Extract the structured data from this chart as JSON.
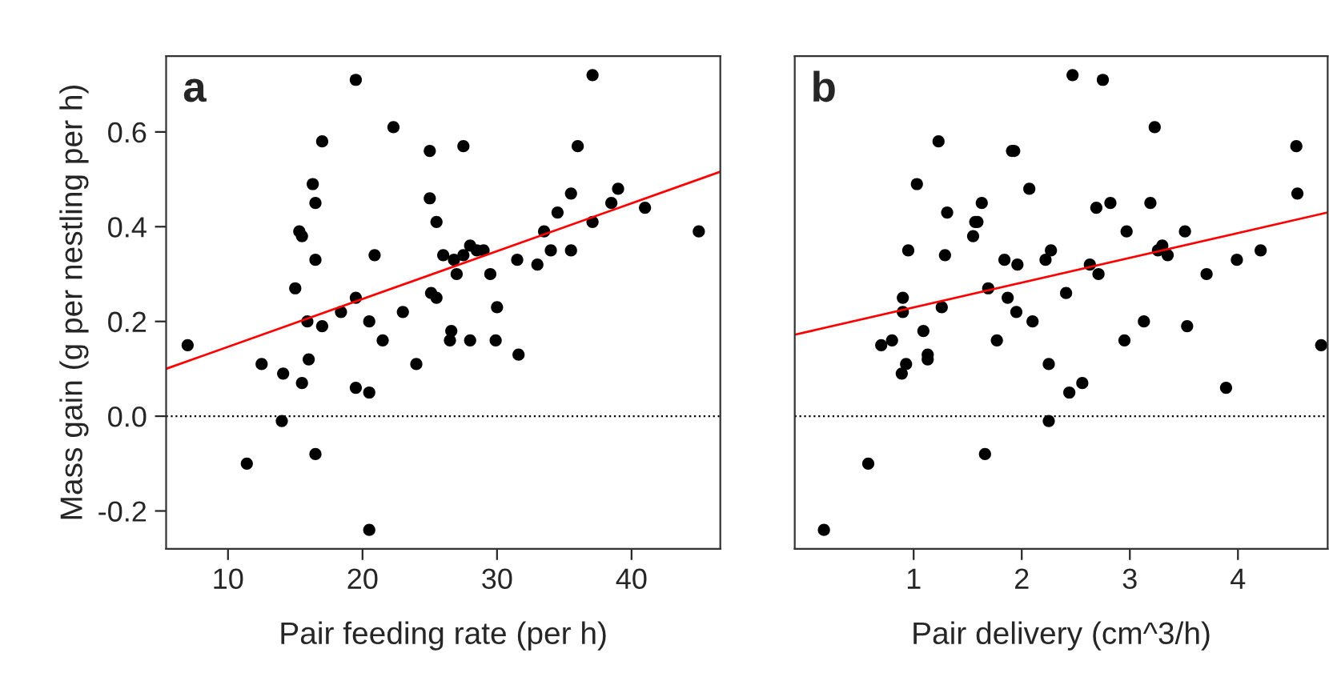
{
  "chart_data": [
    {
      "type": "scatter",
      "title": "a",
      "xlabel": "Pair feeding rate (per h)",
      "ylabel": "Mass gain (g per nestling per h)",
      "xlim": [
        5.4,
        46.6
      ],
      "xticks": [
        10,
        20,
        30,
        40
      ],
      "ylim": [
        -0.28,
        0.76
      ],
      "yticks": [
        {
          "value": -0.2,
          "label": "-0.2"
        },
        {
          "value": 0,
          "label": "0.0"
        },
        {
          "value": 0.2,
          "label": "0.2"
        },
        {
          "value": 0.4,
          "label": "0.4"
        },
        {
          "value": 0.6,
          "label": "0.6"
        }
      ],
      "grid": false,
      "legend": false,
      "ref_lines": [
        {
          "axis": "y",
          "value": 0,
          "color": "#000000",
          "line_style": "dotted"
        }
      ],
      "series": [
        {
          "marker": "circle",
          "color": "#000000",
          "x": [
            7.0,
            11.4,
            12.5,
            14.0,
            14.1,
            15.0,
            15.3,
            15.5,
            15.5,
            15.9,
            16.0,
            16.3,
            16.5,
            16.5,
            16.5,
            17.0,
            17.0,
            18.4,
            19.5,
            19.5,
            19.5,
            20.5,
            20.5,
            20.5,
            20.9,
            21.5,
            22.3,
            23.0,
            24.0,
            25.0,
            25.0,
            25.1,
            25.5,
            25.5,
            26.0,
            26.5,
            26.6,
            26.8,
            27.0,
            27.5,
            27.5,
            28.0,
            28.0,
            28.5,
            29.0,
            29.5,
            29.9,
            30.0,
            31.5,
            31.6,
            33.0,
            33.5,
            34.0,
            34.5,
            35.5,
            35.5,
            36.0,
            37.1,
            37.1,
            38.5,
            39.0,
            41.0,
            45.0
          ],
          "values": [
            0.15,
            -0.1,
            0.11,
            -0.01,
            0.09,
            0.27,
            0.39,
            0.38,
            0.07,
            0.2,
            0.12,
            0.49,
            0.45,
            0.33,
            -0.08,
            0.58,
            0.19,
            0.22,
            0.71,
            0.25,
            0.06,
            0.2,
            0.05,
            -0.24,
            0.34,
            0.16,
            0.61,
            0.22,
            0.11,
            0.56,
            0.46,
            0.26,
            0.41,
            0.25,
            0.34,
            0.16,
            0.18,
            0.33,
            0.3,
            0.57,
            0.34,
            0.16,
            0.36,
            0.35,
            0.35,
            0.3,
            0.16,
            0.23,
            0.33,
            0.13,
            0.32,
            0.39,
            0.35,
            0.43,
            0.35,
            0.47,
            0.57,
            0.72,
            0.41,
            0.45,
            0.48,
            0.44,
            0.39
          ]
        },
        {
          "type": "line",
          "color": "#ff0000",
          "x": [
            5.4,
            46.6
          ],
          "values": [
            0.1,
            0.516
          ]
        }
      ]
    },
    {
      "type": "scatter",
      "title": "b",
      "xlabel": "Pair delivery (cm^3/h)",
      "xlim": [
        -0.1,
        4.83
      ],
      "xticks": [
        1,
        2,
        3,
        4
      ],
      "ylim": [
        -0.28,
        0.76
      ],
      "tick_labels": "x",
      "grid": false,
      "legend": false,
      "ref_lines": [
        {
          "axis": "y",
          "value": 0,
          "color": "#000000",
          "line_style": "dotted"
        }
      ],
      "series": [
        {
          "marker": "circle",
          "color": "#000000",
          "x": [
            0.17,
            0.58,
            0.7,
            0.8,
            0.89,
            0.9,
            0.9,
            0.93,
            0.95,
            1.03,
            1.09,
            1.13,
            1.13,
            1.23,
            1.26,
            1.29,
            1.31,
            1.55,
            1.57,
            1.59,
            1.63,
            1.66,
            1.69,
            1.77,
            1.84,
            1.87,
            1.91,
            1.93,
            1.95,
            1.96,
            2.07,
            2.1,
            2.22,
            2.25,
            2.25,
            2.27,
            2.41,
            2.44,
            2.47,
            2.56,
            2.63,
            2.69,
            2.71,
            2.75,
            2.82,
            2.95,
            2.97,
            3.13,
            3.19,
            3.23,
            3.26,
            3.3,
            3.35,
            3.51,
            3.53,
            3.71,
            3.89,
            3.99,
            4.21,
            4.54,
            4.55,
            4.77
          ],
          "values": [
            -0.24,
            -0.1,
            0.15,
            0.16,
            0.09,
            0.25,
            0.22,
            0.11,
            0.35,
            0.49,
            0.18,
            0.13,
            0.12,
            0.58,
            0.23,
            0.34,
            0.43,
            0.38,
            0.41,
            0.41,
            0.45,
            -0.08,
            0.27,
            0.16,
            0.33,
            0.25,
            0.56,
            0.56,
            0.22,
            0.32,
            0.48,
            0.2,
            0.33,
            0.11,
            -0.01,
            0.35,
            0.26,
            0.05,
            0.72,
            0.07,
            0.32,
            0.44,
            0.3,
            0.71,
            0.45,
            0.16,
            0.39,
            0.2,
            0.45,
            0.61,
            0.35,
            0.36,
            0.34,
            0.39,
            0.19,
            0.3,
            0.06,
            0.33,
            0.35,
            0.57,
            0.47,
            0.15
          ]
        },
        {
          "type": "line",
          "color": "#ff0000",
          "x": [
            -0.1,
            4.83
          ],
          "values": [
            0.172,
            0.43
          ]
        }
      ]
    }
  ]
}
